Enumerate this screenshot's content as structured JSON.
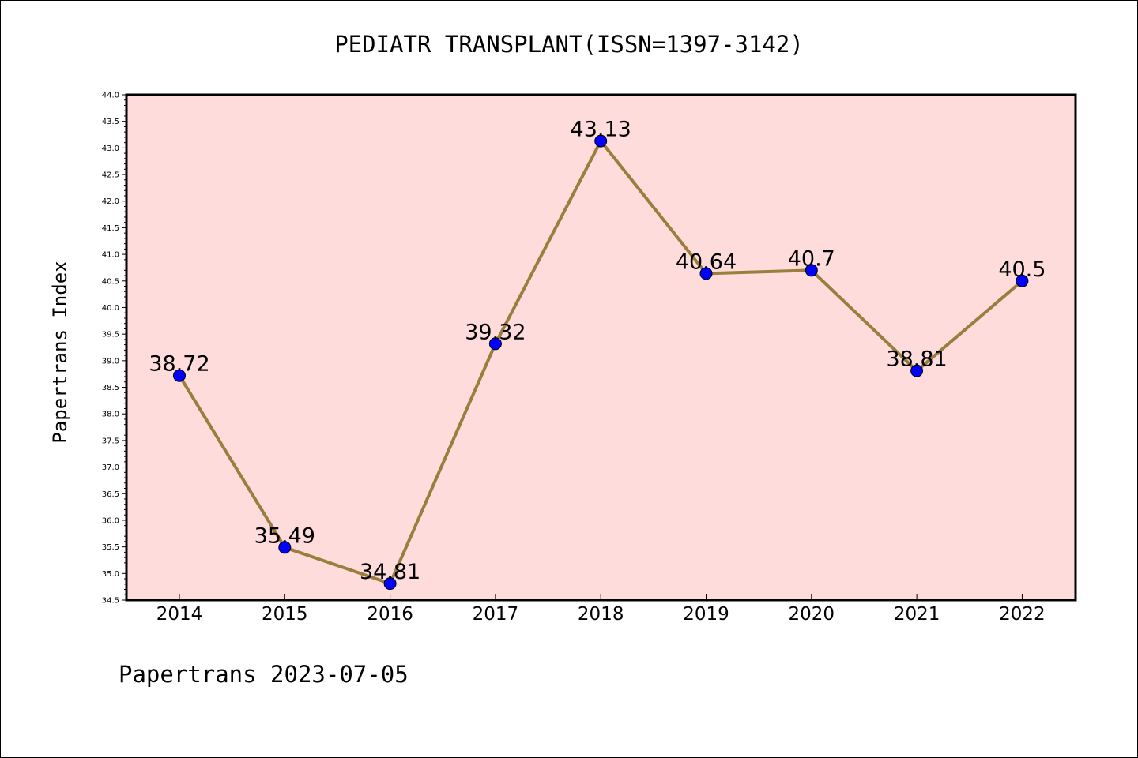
{
  "chart_data": {
    "type": "line",
    "title": "PEDIATR TRANSPLANT(ISSN=1397-3142)",
    "ylabel": "Papertrans Index",
    "xlabel": "",
    "footer": "Papertrans 2023-07-05",
    "categories": [
      "2014",
      "2015",
      "2016",
      "2017",
      "2018",
      "2019",
      "2020",
      "2021",
      "2022"
    ],
    "values": [
      38.72,
      35.49,
      34.81,
      39.32,
      43.13,
      40.64,
      40.7,
      38.81,
      40.5
    ],
    "point_labels": [
      "38.72",
      "35.49",
      "34.81",
      "39.32",
      "43.13",
      "40.64",
      "40.7",
      "38.81",
      "40.5"
    ],
    "ylim": [
      34.5,
      44.0
    ],
    "yticks": [
      "34.5",
      "35.0",
      "35.5",
      "36.0",
      "36.5",
      "37.0",
      "37.5",
      "38.0",
      "38.5",
      "39.0",
      "39.5",
      "40.0",
      "40.5",
      "41.0",
      "41.5",
      "42.0",
      "42.5",
      "43.0",
      "43.5",
      "44.0"
    ],
    "grid": false,
    "colors": {
      "line": "#9a7e3c",
      "marker": "#0000ff",
      "plot_background": "#ffdcdc",
      "axis": "#000000"
    }
  }
}
